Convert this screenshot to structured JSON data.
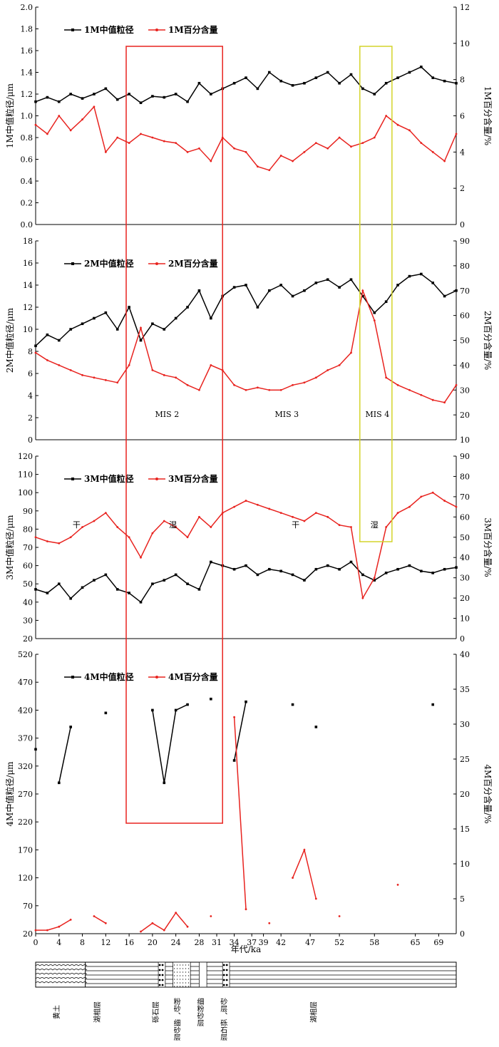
{
  "colors": {
    "median": "#000000",
    "percent": "#e8231f",
    "red_box": "#e8231f",
    "yellow_box": "#d4d42a"
  },
  "xaxis": {
    "label": "年代/ka",
    "min": 0,
    "max": 72,
    "ticks": [
      0,
      4,
      8,
      12,
      16,
      20,
      24,
      28,
      31,
      34,
      37,
      39,
      42,
      47,
      52,
      58,
      65,
      69
    ]
  },
  "highlights": [
    {
      "name": "red-box",
      "x0": 15.5,
      "x1": 32.0,
      "color": "#e8231f"
    },
    {
      "name": "yellow-box",
      "x0": 55.5,
      "x1": 61.0,
      "color": "#d4d42a"
    }
  ],
  "annotations": {
    "mis": [
      {
        "text": "MIS 2",
        "x": 22.5
      },
      {
        "text": "MIS 3",
        "x": 43
      },
      {
        "text": "MIS 4",
        "x": 58.5
      }
    ],
    "climate": [
      {
        "text": "干",
        "x": 7
      },
      {
        "text": "湿",
        "x": 23.5
      },
      {
        "text": "干",
        "x": 44.5
      },
      {
        "text": "湿",
        "x": 58
      }
    ]
  },
  "strata": {
    "bottom_labels": [
      {
        "text": "黄土",
        "x": 4,
        "vertical": false
      },
      {
        "text": "湖相层",
        "x": 11,
        "vertical": false
      },
      {
        "text": "砾石层",
        "x": 21,
        "vertical": false
      },
      {
        "text": "粉砂、细砂层",
        "x": 24,
        "vertical": true
      },
      {
        "text": "细粉砂层",
        "x": 28,
        "vertical": true
      },
      {
        "text": "砂层、砾石层",
        "x": 32,
        "vertical": true
      },
      {
        "text": "湖相层",
        "x": 48,
        "vertical": false
      }
    ]
  },
  "chart_data": [
    {
      "type": "line",
      "panel": "1M",
      "ylabel_left": "1M中值粒径/μm",
      "ylabel_right": "1M百分含量/%",
      "ylim_left": [
        0,
        2.0
      ],
      "yticks_left": [
        0,
        0.2,
        0.4,
        0.6,
        0.8,
        1.0,
        1.2,
        1.4,
        1.6,
        1.8,
        2.0
      ],
      "ylim_right": [
        0,
        12
      ],
      "yticks_right": [
        0,
        2,
        4,
        6,
        8,
        10,
        12
      ],
      "series": [
        {
          "name": "1M中值粒径",
          "axis": "left",
          "x": [
            0,
            2,
            4,
            6,
            8,
            10,
            12,
            14,
            16,
            18,
            20,
            22,
            24,
            26,
            28,
            30,
            32,
            34,
            36,
            38,
            40,
            42,
            44,
            46,
            48,
            50,
            52,
            54,
            56,
            58,
            60,
            62,
            64,
            66,
            68,
            70,
            72
          ],
          "values": [
            1.13,
            1.17,
            1.13,
            1.2,
            1.16,
            1.2,
            1.25,
            1.15,
            1.2,
            1.12,
            1.18,
            1.17,
            1.2,
            1.13,
            1.3,
            1.2,
            1.25,
            1.3,
            1.35,
            1.25,
            1.4,
            1.32,
            1.28,
            1.3,
            1.35,
            1.4,
            1.3,
            1.38,
            1.25,
            1.2,
            1.3,
            1.35,
            1.4,
            1.45,
            1.35,
            1.32,
            1.3
          ]
        },
        {
          "name": "1M百分含量",
          "axis": "right",
          "x": [
            0,
            2,
            4,
            6,
            8,
            10,
            12,
            14,
            16,
            18,
            20,
            22,
            24,
            26,
            28,
            30,
            32,
            34,
            36,
            38,
            40,
            42,
            44,
            46,
            48,
            50,
            52,
            54,
            56,
            58,
            60,
            62,
            64,
            66,
            68,
            70,
            72
          ],
          "values": [
            5.5,
            5,
            6,
            5.2,
            5.8,
            6.5,
            4,
            4.8,
            4.5,
            5,
            4.8,
            4.6,
            4.5,
            4,
            4.2,
            3.5,
            4.8,
            4.2,
            4,
            3.2,
            3,
            3.8,
            3.5,
            4,
            4.5,
            4.2,
            4.8,
            4.3,
            4.5,
            4.8,
            6,
            5.5,
            5.2,
            4.5,
            4,
            3.5,
            5
          ]
        }
      ]
    },
    {
      "type": "line",
      "panel": "2M",
      "ylabel_left": "2M中值粒径/μm",
      "ylabel_right": "2M百分含量/%",
      "ylim_left": [
        0,
        18
      ],
      "yticks_left": [
        0,
        2,
        4,
        6,
        8,
        10,
        12,
        14,
        16,
        18
      ],
      "ylim_right": [
        10,
        90
      ],
      "yticks_right": [
        10,
        20,
        30,
        40,
        50,
        60,
        70,
        80,
        90
      ],
      "series": [
        {
          "name": "2M中值粒径",
          "axis": "left",
          "x": [
            0,
            2,
            4,
            6,
            8,
            10,
            12,
            14,
            16,
            18,
            20,
            22,
            24,
            26,
            28,
            30,
            32,
            34,
            36,
            38,
            40,
            42,
            44,
            46,
            48,
            50,
            52,
            54,
            56,
            58,
            60,
            62,
            64,
            66,
            68,
            70,
            72
          ],
          "values": [
            8.5,
            9.5,
            9,
            10,
            10.5,
            11,
            11.5,
            10,
            12,
            9,
            10.5,
            10,
            11,
            12,
            13.5,
            11,
            13,
            13.8,
            14,
            12,
            13.5,
            14,
            13,
            13.5,
            14.2,
            14.5,
            13.8,
            14.5,
            13,
            11.5,
            12.5,
            14,
            14.8,
            15,
            14.2,
            13,
            13.5
          ]
        },
        {
          "name": "2M百分含量",
          "axis": "right",
          "x": [
            0,
            2,
            4,
            6,
            8,
            10,
            12,
            14,
            16,
            18,
            20,
            22,
            24,
            26,
            28,
            30,
            32,
            34,
            36,
            38,
            40,
            42,
            44,
            46,
            48,
            50,
            52,
            54,
            56,
            58,
            60,
            62,
            64,
            66,
            68,
            70,
            72
          ],
          "values": [
            45,
            42,
            40,
            38,
            36,
            35,
            34,
            33,
            40,
            55,
            38,
            36,
            35,
            32,
            30,
            40,
            38,
            32,
            30,
            31,
            30,
            30,
            32,
            33,
            35,
            38,
            40,
            45,
            70,
            58,
            35,
            32,
            30,
            28,
            26,
            25,
            32
          ]
        }
      ]
    },
    {
      "type": "line",
      "panel": "3M",
      "ylabel_left": "3M中值粒径/μm",
      "ylabel_right": "3M百分含量/%",
      "ylim_left": [
        20,
        120
      ],
      "yticks_left": [
        20,
        30,
        40,
        50,
        60,
        70,
        80,
        90,
        100,
        110,
        120
      ],
      "ylim_right": [
        0,
        90
      ],
      "yticks_right": [
        0,
        10,
        20,
        30,
        40,
        50,
        60,
        70,
        80,
        90
      ],
      "series": [
        {
          "name": "3M中值粒径",
          "axis": "left",
          "x": [
            0,
            2,
            4,
            6,
            8,
            10,
            12,
            14,
            16,
            18,
            20,
            22,
            24,
            26,
            28,
            30,
            32,
            34,
            36,
            38,
            40,
            42,
            44,
            46,
            48,
            50,
            52,
            54,
            56,
            58,
            60,
            62,
            64,
            66,
            68,
            70,
            72
          ],
          "values": [
            47,
            45,
            50,
            42,
            48,
            52,
            55,
            47,
            45,
            40,
            50,
            52,
            55,
            50,
            47,
            62,
            60,
            58,
            60,
            55,
            58,
            57,
            55,
            52,
            58,
            60,
            58,
            62,
            55,
            52,
            56,
            58,
            60,
            57,
            56,
            58,
            59
          ]
        },
        {
          "name": "3M百分含量",
          "axis": "right",
          "x": [
            0,
            2,
            4,
            6,
            8,
            10,
            12,
            14,
            16,
            18,
            20,
            22,
            24,
            26,
            28,
            30,
            32,
            34,
            36,
            38,
            40,
            42,
            44,
            46,
            48,
            50,
            52,
            54,
            56,
            58,
            60,
            62,
            64,
            66,
            68,
            70,
            72
          ],
          "values": [
            50,
            48,
            47,
            50,
            55,
            58,
            62,
            55,
            50,
            40,
            52,
            58,
            55,
            50,
            60,
            55,
            62,
            65,
            68,
            66,
            64,
            62,
            60,
            58,
            62,
            60,
            56,
            55,
            20,
            30,
            55,
            62,
            65,
            70,
            72,
            68,
            65
          ]
        }
      ]
    },
    {
      "type": "line",
      "panel": "4M",
      "ylabel_left": "4M中值粒径/μm",
      "ylabel_right": "4M百分含量/%",
      "ylim_left": [
        20,
        520
      ],
      "yticks_left": [
        20,
        70,
        120,
        170,
        220,
        270,
        320,
        370,
        420,
        470,
        520
      ],
      "ylim_right": [
        0,
        40
      ],
      "yticks_right": [
        0,
        5,
        10,
        15,
        20,
        25,
        30,
        35,
        40
      ],
      "series": [
        {
          "name": "4M中值粒径",
          "axis": "left",
          "x": [
            0,
            2,
            4,
            6,
            8,
            10,
            12,
            14,
            16,
            18,
            20,
            22,
            24,
            26,
            28,
            30,
            32,
            34,
            36,
            38,
            40,
            42,
            44,
            46,
            48,
            50,
            52,
            54,
            56,
            58,
            60,
            62,
            64,
            66,
            68,
            70,
            72
          ],
          "values": [
            350,
            null,
            290,
            390,
            null,
            null,
            415,
            null,
            null,
            null,
            420,
            290,
            420,
            430,
            null,
            440,
            null,
            330,
            435,
            null,
            null,
            null,
            430,
            null,
            390,
            null,
            null,
            null,
            null,
            null,
            null,
            null,
            null,
            null,
            430,
            null,
            null
          ]
        },
        {
          "name": "4M百分含量",
          "axis": "right",
          "x": [
            0,
            2,
            4,
            6,
            8,
            10,
            12,
            14,
            16,
            18,
            20,
            22,
            24,
            26,
            28,
            30,
            32,
            34,
            36,
            38,
            40,
            42,
            44,
            46,
            48,
            50,
            52,
            54,
            56,
            58,
            60,
            62,
            64,
            66,
            68,
            70,
            72
          ],
          "values": [
            0.5,
            0.5,
            1,
            2,
            null,
            2.5,
            1.5,
            null,
            null,
            0.3,
            1.5,
            0.5,
            3,
            1,
            null,
            2.5,
            null,
            31,
            3.5,
            null,
            1.5,
            null,
            8,
            12,
            5,
            null,
            2.5,
            null,
            null,
            null,
            null,
            7,
            null,
            null,
            null,
            null,
            null
          ]
        }
      ]
    }
  ]
}
